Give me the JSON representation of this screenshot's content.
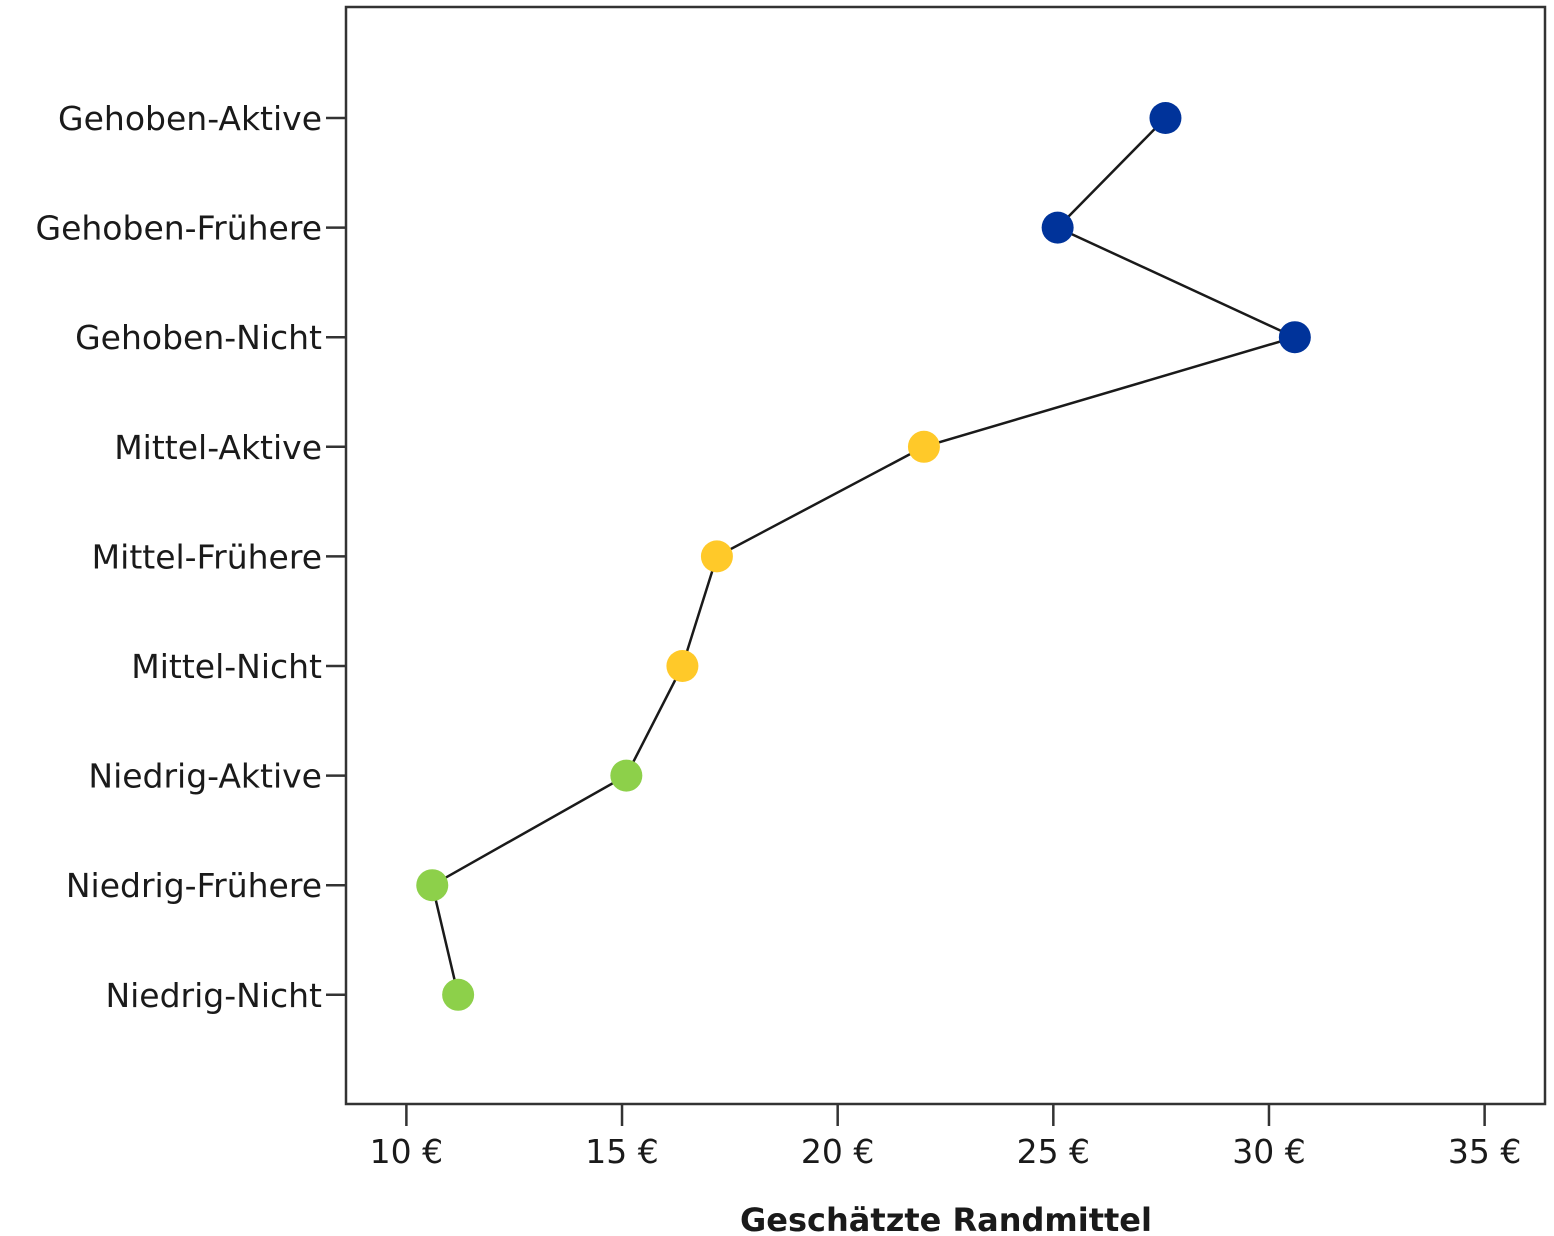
{
  "chart_data": {
    "type": "line",
    "xlabel": "Geschätzte Randmittel",
    "ylabel": "",
    "xlim": [
      8.6,
      36.4
    ],
    "xticks": [
      10,
      15,
      20,
      25,
      30,
      35
    ],
    "xtick_labels": [
      "10 €",
      "15 €",
      "20 €",
      "25 €",
      "30 €",
      "35 €"
    ],
    "categories": [
      "Gehoben-Aktive",
      "Gehoben-Frühere",
      "Gehoben-Nicht",
      "Mittel-Aktive",
      "Mittel-Frühere",
      "Mittel-Nicht",
      "Niedrig-Aktive",
      "Niedrig-Frühere",
      "Niedrig-Nicht"
    ],
    "values": [
      27.6,
      25.1,
      30.6,
      22.0,
      17.2,
      16.4,
      15.1,
      10.6,
      11.2
    ],
    "point_colors": [
      "#00339a",
      "#00339a",
      "#00339a",
      "#ffc929",
      "#ffc929",
      "#ffc929",
      "#8dd04a",
      "#8dd04a",
      "#8dd04a"
    ],
    "line_color": "#1a1a1a",
    "grid": false,
    "legend": "none",
    "orientation": "horizontal"
  }
}
